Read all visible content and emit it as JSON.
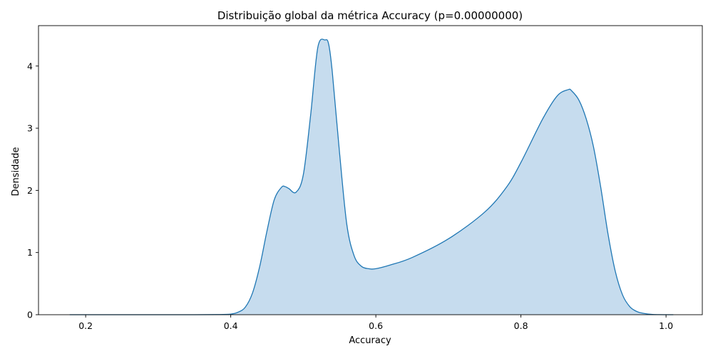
{
  "chart_data": {
    "type": "area",
    "title": "Distribuição global da métrica Accuracy (p=0.00000000)",
    "xlabel": "Accuracy",
    "ylabel": "Densidade",
    "xlim": [
      0.135,
      1.05
    ],
    "ylim": [
      0,
      4.65
    ],
    "grid": false,
    "legend": "none",
    "xticks": [
      0.2,
      0.4,
      0.6,
      0.8,
      1.0
    ],
    "xtick_labels": [
      "0.2",
      "0.4",
      "0.6",
      "0.8",
      "1.0"
    ],
    "yticks": [
      0,
      1,
      2,
      3,
      4
    ],
    "ytick_labels": [
      "0",
      "1",
      "2",
      "3",
      "4"
    ],
    "series": [
      {
        "x": [
          0.178,
          0.25,
          0.3,
          0.35,
          0.38,
          0.4,
          0.41,
          0.42,
          0.43,
          0.44,
          0.45,
          0.46,
          0.47,
          0.475,
          0.48,
          0.49,
          0.5,
          0.51,
          0.52,
          0.53,
          0.535,
          0.54,
          0.55,
          0.56,
          0.57,
          0.58,
          0.59,
          0.6,
          0.62,
          0.65,
          0.7,
          0.75,
          0.78,
          0.8,
          0.83,
          0.85,
          0.865,
          0.87,
          0.88,
          0.89,
          0.9,
          0.91,
          0.92,
          0.93,
          0.94,
          0.95,
          0.96,
          0.97,
          0.98,
          0.99,
          1.0,
          1.01
        ],
        "y": [
          0,
          0,
          0,
          0,
          0.002,
          0.01,
          0.04,
          0.12,
          0.35,
          0.78,
          1.35,
          1.85,
          2.05,
          2.06,
          2.03,
          1.97,
          2.25,
          3.2,
          4.3,
          4.42,
          4.35,
          3.9,
          2.6,
          1.45,
          0.95,
          0.78,
          0.74,
          0.74,
          0.8,
          0.92,
          1.22,
          1.65,
          2.05,
          2.45,
          3.15,
          3.52,
          3.62,
          3.6,
          3.45,
          3.15,
          2.7,
          2.05,
          1.3,
          0.7,
          0.32,
          0.13,
          0.05,
          0.02,
          0.005,
          0.001,
          0.0003,
          0
        ]
      }
    ],
    "colors": {
      "line": "#1f77b4",
      "fill": "#c6dcee",
      "axes": "#000000"
    }
  }
}
